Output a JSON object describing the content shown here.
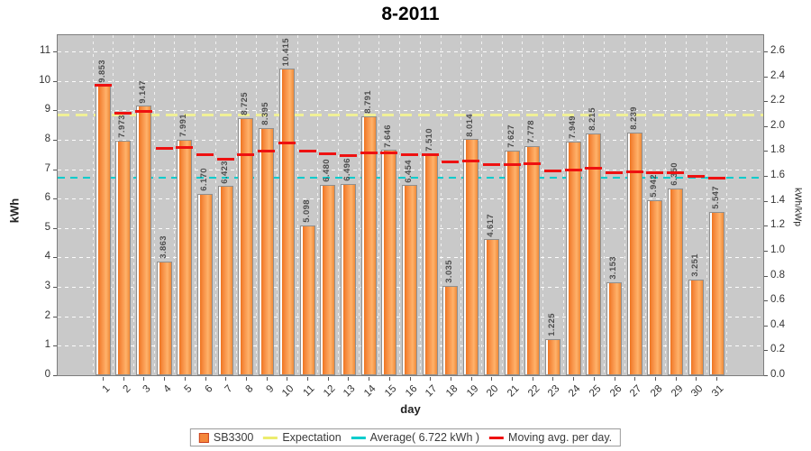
{
  "chart_data": {
    "type": "bar",
    "title": "8-2011",
    "xlabel": "day",
    "ylabel_left": "kWh",
    "ylabel_right": "kWh/kWp",
    "ylim_left": [
      0,
      11.6
    ],
    "ylim_right": [
      0,
      2.74
    ],
    "yticks_left": [
      0,
      1,
      2,
      3,
      4,
      5,
      6,
      7,
      8,
      9,
      10,
      11
    ],
    "yticks_right": [
      "0.0",
      "0.2",
      "0.4",
      "0.6",
      "0.8",
      "1.0",
      "1.2",
      "1.4",
      "1.6",
      "1.8",
      "2.0",
      "2.2",
      "2.4",
      "2.6"
    ],
    "categories": [
      1,
      2,
      3,
      4,
      5,
      6,
      7,
      8,
      9,
      10,
      11,
      12,
      13,
      14,
      15,
      16,
      17,
      18,
      19,
      20,
      21,
      22,
      23,
      24,
      25,
      26,
      27,
      28,
      29,
      30,
      31
    ],
    "series": [
      {
        "name": "SB3300",
        "values": [
          9.853,
          7.973,
          9.147,
          3.863,
          7.991,
          6.17,
          6.423,
          8.725,
          8.395,
          10.415,
          5.098,
          6.48,
          6.496,
          8.791,
          7.646,
          6.454,
          7.51,
          3.035,
          8.014,
          4.617,
          7.627,
          7.778,
          1.225,
          7.949,
          8.215,
          3.153,
          8.239,
          5.942,
          6.35,
          3.251,
          5.547
        ]
      }
    ],
    "expectation_kwh": 8.87,
    "average_kwh": 6.722,
    "moving_avg": [
      9.853,
      8.913,
      8.991,
      7.709,
      7.765,
      7.5,
      7.346,
      7.518,
      7.616,
      7.896,
      7.641,
      7.544,
      7.464,
      7.559,
      7.564,
      7.495,
      7.496,
      7.248,
      7.288,
      7.155,
      7.177,
      7.205,
      6.945,
      6.986,
      7.036,
      6.886,
      6.936,
      6.901,
      6.882,
      6.761,
      6.722
    ],
    "grid": true,
    "legend_position": "bottom",
    "colors": {
      "plot_bg": "#c9c9c9",
      "bar_dark": "#ee7520",
      "bar_mid": "#f5873a",
      "bar_light": "#ffb26b",
      "bar_end": "#f08a38",
      "bar_border": "#8f8f8f",
      "expectation": "#f0f096",
      "average": "#00cccc",
      "moving_avg": "#ee1111",
      "grid": "#ffffff",
      "value_label": "#4d4d4d"
    }
  },
  "legend": {
    "items": [
      {
        "label": "SB3300",
        "swatch": "box",
        "color": "#f5873a",
        "border": "#c8401e"
      },
      {
        "label": "Expectation",
        "swatch": "line",
        "color": "#ecec6e"
      },
      {
        "label": "Average( 6.722 kWh )",
        "swatch": "line",
        "color": "#00cccc"
      },
      {
        "label": "Moving avg. per day.",
        "swatch": "line",
        "color": "#ee1111"
      }
    ]
  }
}
